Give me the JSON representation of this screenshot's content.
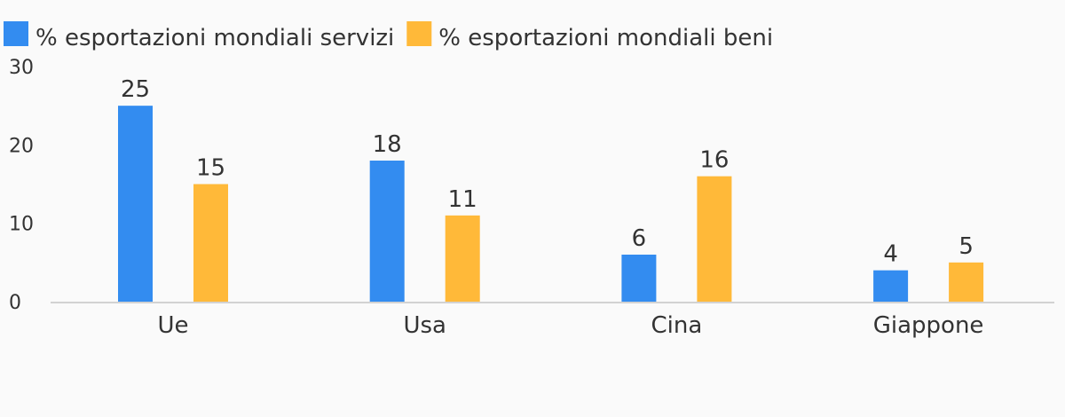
{
  "chart_data": {
    "type": "bar",
    "categories": [
      "Ue",
      "Usa",
      "Cina",
      "Giappone"
    ],
    "series": [
      {
        "name": "% esportazioni mondiali servizi",
        "values": [
          25,
          18,
          6,
          4
        ],
        "color": "#338cf0"
      },
      {
        "name": "% esportazioni mondiali beni",
        "values": [
          15,
          11,
          16,
          5
        ],
        "color": "#ffb939"
      }
    ],
    "y_ticks": [
      0,
      10,
      20,
      30
    ],
    "ylim": [
      0,
      30
    ],
    "grid": false,
    "legend_position": "top-left",
    "axis_color": "#d2d2d2"
  }
}
